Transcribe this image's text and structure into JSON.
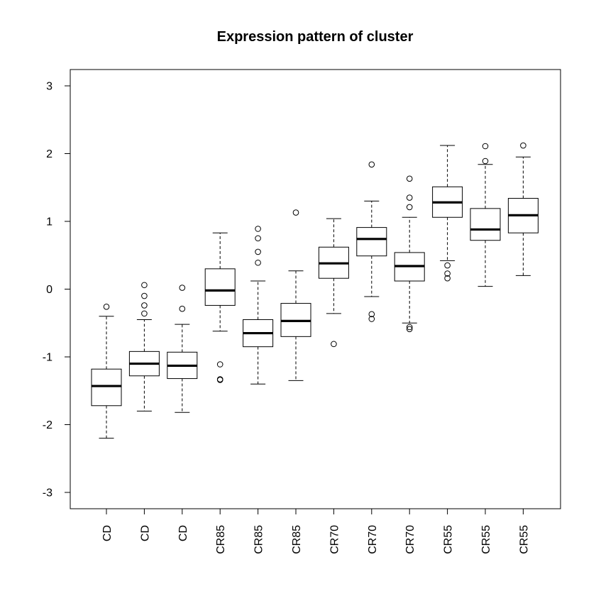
{
  "chart_data": {
    "type": "boxplot",
    "title": "Expression pattern of cluster",
    "xlabel": "",
    "ylabel": "",
    "ylim": [
      -3.25,
      3.25
    ],
    "yticks": [
      -3,
      -2,
      -1,
      0,
      1,
      2,
      3
    ],
    "ytick_labels": [
      "-3",
      "-2",
      "-1",
      "0",
      "1",
      "2",
      "3"
    ],
    "grid": false,
    "categories": [
      "CD",
      "CD",
      "CD",
      "CR85",
      "CR85",
      "CR85",
      "CR70",
      "CR70",
      "CR70",
      "CR55",
      "CR55",
      "CR55"
    ],
    "boxes": [
      {
        "whisker_low": -2.2,
        "q1": -1.72,
        "median": -1.43,
        "q3": -1.18,
        "whisker_high": -0.4,
        "outliers": [
          -0.26
        ]
      },
      {
        "whisker_low": -1.8,
        "q1": -1.28,
        "median": -1.1,
        "q3": -0.92,
        "whisker_high": -0.45,
        "outliers": [
          -0.36,
          -0.24,
          -0.1,
          0.06
        ]
      },
      {
        "whisker_low": -1.82,
        "q1": -1.32,
        "median": -1.13,
        "q3": -0.93,
        "whisker_high": -0.52,
        "outliers": [
          -0.29,
          0.02
        ]
      },
      {
        "whisker_low": -0.62,
        "q1": -0.24,
        "median": -0.02,
        "q3": 0.3,
        "whisker_high": 0.83,
        "outliers": [
          -1.11,
          -1.33,
          -1.34
        ]
      },
      {
        "whisker_low": -1.4,
        "q1": -0.85,
        "median": -0.65,
        "q3": -0.45,
        "whisker_high": 0.12,
        "outliers": [
          0.39,
          0.55,
          0.75,
          0.89
        ]
      },
      {
        "whisker_low": -1.35,
        "q1": -0.7,
        "median": -0.47,
        "q3": -0.21,
        "whisker_high": 0.27,
        "outliers": [
          1.13
        ]
      },
      {
        "whisker_low": -0.36,
        "q1": 0.16,
        "median": 0.38,
        "q3": 0.62,
        "whisker_high": 1.04,
        "outliers": [
          -0.81
        ]
      },
      {
        "whisker_low": -0.11,
        "q1": 0.49,
        "median": 0.74,
        "q3": 0.91,
        "whisker_high": 1.3,
        "outliers": [
          -0.37,
          -0.44,
          1.84
        ]
      },
      {
        "whisker_low": -0.5,
        "q1": 0.12,
        "median": 0.34,
        "q3": 0.54,
        "whisker_high": 1.06,
        "outliers": [
          -0.56,
          -0.59,
          1.21,
          1.35,
          1.63
        ]
      },
      {
        "whisker_low": 0.42,
        "q1": 1.06,
        "median": 1.28,
        "q3": 1.51,
        "whisker_high": 2.12,
        "outliers": [
          0.35,
          0.23,
          0.16
        ]
      },
      {
        "whisker_low": 0.04,
        "q1": 0.72,
        "median": 0.88,
        "q3": 1.19,
        "whisker_high": 1.84,
        "outliers": [
          1.89,
          2.11
        ]
      },
      {
        "whisker_low": 0.2,
        "q1": 0.83,
        "median": 1.09,
        "q3": 1.34,
        "whisker_high": 1.95,
        "outliers": [
          2.12
        ]
      }
    ]
  }
}
